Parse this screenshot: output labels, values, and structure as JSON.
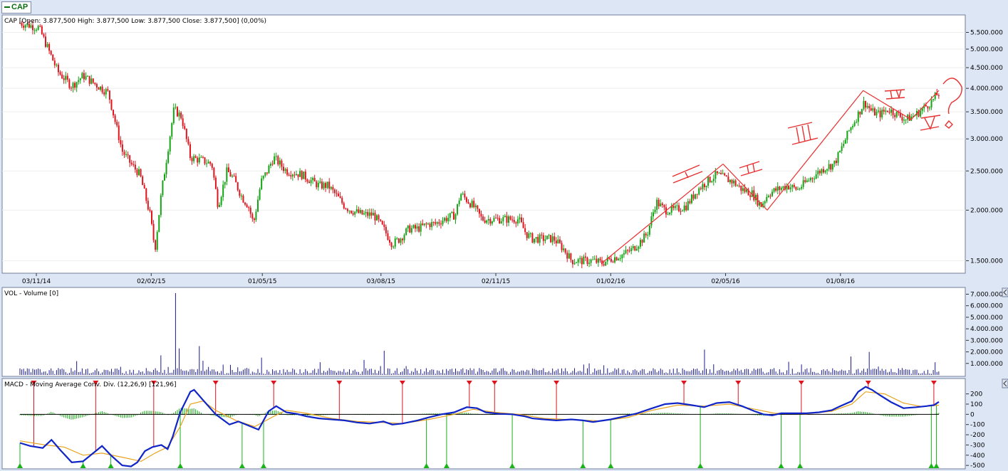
{
  "tab": {
    "label": "CAP"
  },
  "price_pane": {
    "title": "CAP [Open: 3.877,500   High: 3.877,500   Low: 3.877,500   Close: 3.877,500] (0,00%)",
    "annotations": [
      "I",
      "II",
      "III",
      "IV",
      "V",
      "?"
    ]
  },
  "volume_pane": {
    "title": "VOL - Volume [0]"
  },
  "macd_pane": {
    "title": "MACD - Moving Average Conv. Div. (12,26,9) [121,96]"
  },
  "colors": {
    "up": "#13a313",
    "down": "#e0141c",
    "volume": "#1a1a8e",
    "macd": "#1025c8",
    "signal": "#e8a31e",
    "hist": "#18a818",
    "annotation": "#e83030",
    "arrow_down": "#e0141c",
    "arrow_up": "#18b418"
  },
  "chart_data": [
    {
      "type": "candlestick",
      "title": "CAP [Open: 3.877,500   High: 3.877,500   Low: 3.877,500   Close: 3.877,500] (0,00%)",
      "y_scale": "log",
      "ylim": [
        1420000,
        6000000
      ],
      "y_ticks": [
        "5.500.000",
        "5.000.000",
        "4.500.000",
        "4.000.000",
        "3.500.000",
        "3.000.000",
        "2.500.000",
        "2.000.000",
        "1.500.000"
      ],
      "x_ticks": [
        "03/11/14",
        "02/02/15",
        "01/05/15",
        "03/08/15",
        "02/11/15",
        "01/02/16",
        "02/05/16",
        "01/08/16"
      ],
      "close_path": [
        [
          "21/10/14",
          5800000
        ],
        [
          "05/11/14",
          5650000
        ],
        [
          "20/11/14",
          4400000
        ],
        [
          "01/12/14",
          4050000
        ],
        [
          "10/12/14",
          4300000
        ],
        [
          "22/12/14",
          4050000
        ],
        [
          "30/12/14",
          3900000
        ],
        [
          "10/01/15",
          2800000
        ],
        [
          "17/01/15",
          2600000
        ],
        [
          "24/01/15",
          2450000
        ],
        [
          "01/02/15",
          1950000
        ],
        [
          "05/02/15",
          1600000
        ],
        [
          "10/02/15",
          2200000
        ],
        [
          "15/02/15",
          2800000
        ],
        [
          "20/02/15",
          3550000
        ],
        [
          "26/02/15",
          3400000
        ],
        [
          "05/03/15",
          2700000
        ],
        [
          "15/03/15",
          2650000
        ],
        [
          "22/03/15",
          2600000
        ],
        [
          "27/03/15",
          2050000
        ],
        [
          "03/04/15",
          2500000
        ],
        [
          "08/04/15",
          2400000
        ],
        [
          "15/04/15",
          2150000
        ],
        [
          "20/04/15",
          2050000
        ],
        [
          "24/04/15",
          1850000
        ],
        [
          "30/04/15",
          2350000
        ],
        [
          "05/05/15",
          2500000
        ],
        [
          "10/05/15",
          2700000
        ],
        [
          "20/05/15",
          2500000
        ],
        [
          "01/06/15",
          2450000
        ],
        [
          "10/06/15",
          2350000
        ],
        [
          "15/06/15",
          2300000
        ],
        [
          "22/06/15",
          2300000
        ],
        [
          "30/06/15",
          2150000
        ],
        [
          "05/07/15",
          2050000
        ],
        [
          "10/07/15",
          2000000
        ],
        [
          "20/07/15",
          1950000
        ],
        [
          "28/07/15",
          1950000
        ],
        [
          "05/08/15",
          1800000
        ],
        [
          "12/08/15",
          1650000
        ],
        [
          "18/08/15",
          1700000
        ],
        [
          "25/08/15",
          1800000
        ],
        [
          "01/09/15",
          1800000
        ],
        [
          "10/09/15",
          1850000
        ],
        [
          "15/09/15",
          1850000
        ],
        [
          "22/09/15",
          1900000
        ],
        [
          "01/10/15",
          1950000
        ],
        [
          "05/10/15",
          2200000
        ],
        [
          "08/10/15",
          2150000
        ],
        [
          "15/10/15",
          2050000
        ],
        [
          "22/10/15",
          1900000
        ],
        [
          "01/11/15",
          1900000
        ],
        [
          "10/11/15",
          1900000
        ],
        [
          "20/11/15",
          1900000
        ],
        [
          "26/11/15",
          1750000
        ],
        [
          "01/12/15",
          1700000
        ],
        [
          "10/12/15",
          1700000
        ],
        [
          "18/12/15",
          1700000
        ],
        [
          "26/12/15",
          1600000
        ],
        [
          "01/01/16",
          1500000
        ],
        [
          "10/01/16",
          1500000
        ],
        [
          "18/01/16",
          1500000
        ],
        [
          "25/01/16",
          1480000
        ],
        [
          "02/02/16",
          1520000
        ],
        [
          "10/02/16",
          1550000
        ],
        [
          "18/02/16",
          1600000
        ],
        [
          "25/02/16",
          1680000
        ],
        [
          "01/03/16",
          1750000
        ],
        [
          "08/03/16",
          2100000
        ],
        [
          "15/03/16",
          2000000
        ],
        [
          "22/03/16",
          2000000
        ],
        [
          "01/04/16",
          2050000
        ],
        [
          "10/04/16",
          2250000
        ],
        [
          "17/04/16",
          2350000
        ],
        [
          "25/04/16",
          2450000
        ],
        [
          "01/05/16",
          2400000
        ],
        [
          "08/05/16",
          2350000
        ],
        [
          "15/05/16",
          2250000
        ],
        [
          "23/05/16",
          2200000
        ],
        [
          "30/05/16",
          2050000
        ],
        [
          "05/06/16",
          2200000
        ],
        [
          "12/06/16",
          2250000
        ],
        [
          "20/06/16",
          2300000
        ],
        [
          "28/06/16",
          2250000
        ],
        [
          "05/07/16",
          2350000
        ],
        [
          "12/07/16",
          2450000
        ],
        [
          "20/07/16",
          2550000
        ],
        [
          "27/07/16",
          2600000
        ],
        [
          "01/08/16",
          2800000
        ],
        [
          "08/08/16",
          3150000
        ],
        [
          "15/08/16",
          3450000
        ],
        [
          "20/08/16",
          3700000
        ],
        [
          "26/08/16",
          3500000
        ],
        [
          "01/09/16",
          3450000
        ],
        [
          "08/09/16",
          3550000
        ],
        [
          "15/09/16",
          3450000
        ],
        [
          "22/09/16",
          3350000
        ],
        [
          "30/09/16",
          3450000
        ],
        [
          "07/10/16",
          3600000
        ],
        [
          "12/10/16",
          3700000
        ],
        [
          "17/10/16",
          3877500
        ]
      ],
      "wave_lines": [
        [
          "25/01/16",
          1480000,
          "30/04/16",
          2600000
        ],
        [
          "30/04/16",
          2600000,
          "04/06/16",
          2000000
        ],
        [
          "04/06/16",
          2000000,
          "19/08/16",
          3950000
        ],
        [
          "19/08/16",
          3950000,
          "26/09/16",
          3350000
        ],
        [
          "26/09/16",
          3350000,
          "18/10/16",
          3950000
        ]
      ]
    },
    {
      "type": "bar",
      "title": "VOL - Volume [0]",
      "ylim": [
        0,
        7400000
      ],
      "y_ticks": [
        "7.000.000",
        "6.000.000",
        "5.000.000",
        "4.000.000",
        "3.000.000",
        "2.000.000",
        "1.000.000"
      ],
      "spikes": [
        [
          "05/12/14",
          1200000
        ],
        [
          "10/02/15",
          1700000
        ],
        [
          "21/02/15",
          7100000
        ],
        [
          "24/02/15",
          2300000
        ],
        [
          "12/03/15",
          2500000
        ],
        [
          "01/05/15",
          1500000
        ],
        [
          "05/08/15",
          2100000
        ],
        [
          "15/01/16",
          1000000
        ],
        [
          "15/04/16",
          2200000
        ],
        [
          "10/08/16",
          1600000
        ],
        [
          "24/08/16",
          2000000
        ],
        [
          "15/10/16",
          1100000
        ]
      ],
      "typical_volume": 400000
    },
    {
      "type": "line",
      "title": "MACD - Moving Average Conv. Div. (12,26,9) [121,96]",
      "ylim": [
        -520,
        260
      ],
      "y_ticks": [
        "200",
        "100",
        "0",
        "-100",
        "-200",
        "-300",
        "-400",
        "-500"
      ],
      "series": [
        {
          "name": "MACD",
          "points": [
            [
              "21/10/14",
              -280
            ],
            [
              "29/10/14",
              -310
            ],
            [
              "08/11/14",
              -330
            ],
            [
              "15/11/14",
              -250
            ],
            [
              "22/11/14",
              -350
            ],
            [
              "01/12/14",
              -470
            ],
            [
              "10/12/14",
              -460
            ],
            [
              "18/12/14",
              -380
            ],
            [
              "25/12/14",
              -310
            ],
            [
              "01/01/15",
              -400
            ],
            [
              "10/01/15",
              -500
            ],
            [
              "17/01/15",
              -510
            ],
            [
              "22/01/15",
              -470
            ],
            [
              "28/01/15",
              -360
            ],
            [
              "03/02/15",
              -320
            ],
            [
              "10/02/15",
              -300
            ],
            [
              "15/02/15",
              -340
            ],
            [
              "19/02/15",
              -220
            ],
            [
              "25/02/15",
              20
            ],
            [
              "05/03/15",
              220
            ],
            [
              "08/03/15",
              240
            ],
            [
              "15/03/15",
              140
            ],
            [
              "25/03/15",
              0
            ],
            [
              "05/04/15",
              -100
            ],
            [
              "12/04/15",
              -70
            ],
            [
              "20/04/15",
              -110
            ],
            [
              "28/04/15",
              -150
            ],
            [
              "06/05/15",
              30
            ],
            [
              "12/05/15",
              80
            ],
            [
              "20/05/15",
              20
            ],
            [
              "28/05/15",
              5
            ],
            [
              "05/06/15",
              -20
            ],
            [
              "15/06/15",
              -40
            ],
            [
              "25/06/15",
              -50
            ],
            [
              "05/07/15",
              -60
            ],
            [
              "15/07/15",
              -80
            ],
            [
              "25/07/15",
              -90
            ],
            [
              "05/08/15",
              -70
            ],
            [
              "12/08/15",
              -100
            ],
            [
              "20/08/15",
              -90
            ],
            [
              "01/09/15",
              -60
            ],
            [
              "10/09/15",
              -30
            ],
            [
              "20/09/15",
              0
            ],
            [
              "30/09/15",
              20
            ],
            [
              "10/10/15",
              70
            ],
            [
              "18/10/15",
              60
            ],
            [
              "25/10/15",
              20
            ],
            [
              "05/11/15",
              5
            ],
            [
              "15/11/15",
              0
            ],
            [
              "25/11/15",
              -20
            ],
            [
              "01/12/15",
              -40
            ],
            [
              "10/12/15",
              -50
            ],
            [
              "20/12/15",
              -60
            ],
            [
              "01/01/16",
              -50
            ],
            [
              "10/01/16",
              -60
            ],
            [
              "18/01/16",
              -75
            ],
            [
              "01/02/16",
              -50
            ],
            [
              "12/02/16",
              -20
            ],
            [
              "22/02/16",
              10
            ],
            [
              "05/03/16",
              60
            ],
            [
              "15/03/16",
              100
            ],
            [
              "25/03/16",
              110
            ],
            [
              "05/04/16",
              90
            ],
            [
              "15/04/16",
              70
            ],
            [
              "25/04/16",
              110
            ],
            [
              "05/05/16",
              120
            ],
            [
              "15/05/16",
              80
            ],
            [
              "25/05/16",
              30
            ],
            [
              "01/06/16",
              0
            ],
            [
              "08/06/16",
              -10
            ],
            [
              "15/06/16",
              10
            ],
            [
              "25/06/16",
              10
            ],
            [
              "05/07/16",
              10
            ],
            [
              "15/07/16",
              20
            ],
            [
              "25/07/16",
              40
            ],
            [
              "01/08/16",
              80
            ],
            [
              "10/08/16",
              130
            ],
            [
              "15/08/16",
              220
            ],
            [
              "21/08/16",
              270
            ],
            [
              "26/08/16",
              240
            ],
            [
              "01/09/16",
              190
            ],
            [
              "10/09/16",
              120
            ],
            [
              "20/09/16",
              60
            ],
            [
              "30/09/16",
              70
            ],
            [
              "08/10/16",
              80
            ],
            [
              "14/10/16",
              90
            ],
            [
              "18/10/16",
              121.96
            ]
          ]
        },
        {
          "name": "Signal",
          "points": [
            [
              "21/10/14",
              -260
            ],
            [
              "10/11/14",
              -300
            ],
            [
              "25/11/14",
              -320
            ],
            [
              "10/12/14",
              -400
            ],
            [
              "25/12/14",
              -380
            ],
            [
              "10/01/15",
              -420
            ],
            [
              "25/01/15",
              -460
            ],
            [
              "05/02/15",
              -380
            ],
            [
              "15/02/15",
              -320
            ],
            [
              "25/02/15",
              -120
            ],
            [
              "05/03/15",
              100
            ],
            [
              "15/03/15",
              130
            ],
            [
              "25/03/15",
              40
            ],
            [
              "10/04/15",
              -60
            ],
            [
              "25/04/15",
              -120
            ],
            [
              "10/05/15",
              -20
            ],
            [
              "20/05/15",
              40
            ],
            [
              "05/06/15",
              10
            ],
            [
              "25/06/15",
              -40
            ],
            [
              "15/07/15",
              -70
            ],
            [
              "05/08/15",
              -80
            ],
            [
              "20/08/15",
              -90
            ],
            [
              "10/09/15",
              -50
            ],
            [
              "30/09/15",
              0
            ],
            [
              "15/10/15",
              50
            ],
            [
              "01/11/15",
              20
            ],
            [
              "20/11/15",
              0
            ],
            [
              "10/12/15",
              -40
            ],
            [
              "05/01/16",
              -55
            ],
            [
              "25/01/16",
              -65
            ],
            [
              "15/02/16",
              -30
            ],
            [
              "05/03/16",
              40
            ],
            [
              "25/03/16",
              90
            ],
            [
              "15/04/16",
              80
            ],
            [
              "05/05/16",
              100
            ],
            [
              "25/05/16",
              50
            ],
            [
              "10/06/16",
              10
            ],
            [
              "05/07/16",
              5
            ],
            [
              "25/07/16",
              30
            ],
            [
              "10/08/16",
              100
            ],
            [
              "21/08/16",
              220
            ],
            [
              "05/09/16",
              200
            ],
            [
              "20/09/16",
              110
            ],
            [
              "05/10/16",
              75
            ],
            [
              "18/10/16",
              90
            ]
          ]
        }
      ],
      "sell_signals": [
        "01/11/14",
        "20/12/14",
        "04/02/15",
        "25/03/15",
        "10/05/15",
        "01/07/15",
        "20/08/15",
        "12/10/15",
        "01/11/15",
        "20/12/15",
        "30/03/16",
        "12/05/16",
        "01/07/16",
        "23/08/16",
        "14/10/16"
      ],
      "buy_signals": [
        "21/10/14",
        "10/12/14",
        "01/01/15",
        "25/02/15",
        "15/04/15",
        "02/05/15",
        "08/09/15",
        "24/09/15",
        "15/11/15",
        "10/01/16",
        "01/02/16",
        "12/04/16",
        "15/06/16",
        "30/06/16",
        "12/10/16",
        "16/10/16"
      ]
    }
  ]
}
